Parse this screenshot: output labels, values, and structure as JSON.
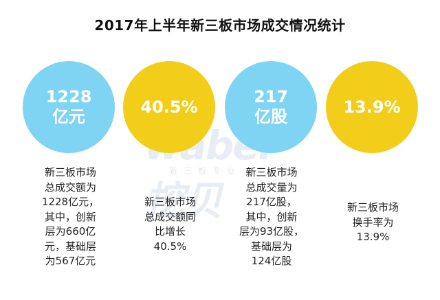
{
  "title": "2017年上半年新三板市场成交情况统计",
  "watermark": {
    "logo": "wabei挖贝",
    "sub": "新三板专业"
  },
  "colors": {
    "blue": "#7fd3f3",
    "yellow": "#f2cd1a"
  },
  "chart_data": {
    "type": "table",
    "title": "2017年上半年新三板市场成交情况统计",
    "items": [
      {
        "value_lines": [
          "1228",
          "亿元"
        ],
        "color": "blue",
        "description": [
          "新三板市场",
          "总成交额为",
          "1228亿元，",
          "其中，创新",
          "层为660亿",
          "元，基础层",
          "为567亿元"
        ]
      },
      {
        "value_lines": [
          "40.5%"
        ],
        "color": "yellow",
        "description": [
          "新三板市场",
          "总成交额同",
          "比增长",
          "40.5%"
        ]
      },
      {
        "value_lines": [
          "217",
          "亿股"
        ],
        "color": "blue",
        "description": [
          "新三板市场",
          "总成交量为",
          "217亿股，",
          "其中，创新",
          "层为93亿股，",
          "基础层为",
          "124亿股"
        ]
      },
      {
        "value_lines": [
          "13.9%"
        ],
        "color": "yellow",
        "description": [
          "新三板市场",
          "换手率为",
          "13.9%"
        ]
      }
    ]
  }
}
